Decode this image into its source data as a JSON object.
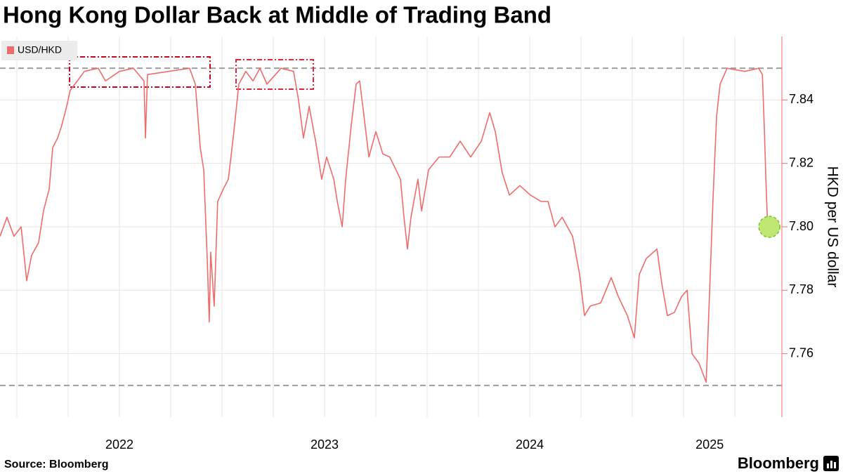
{
  "chart_data": {
    "type": "line",
    "title": "Hong Kong Dollar Back at Middle of Trading Band",
    "y_axis_label": "HKD per US dollar",
    "source": "Source: Bloomberg",
    "brand": "Bloomberg",
    "xlim": [
      2021.918,
      2025.729
    ],
    "xticks": [
      {
        "value": 2022.5,
        "label": "2022"
      },
      {
        "value": 2023.5,
        "label": "2023"
      },
      {
        "value": 2024.5,
        "label": "2024"
      },
      {
        "value": 2025.377,
        "label": "2025"
      }
    ],
    "xgrid": [
      2022,
      2022.25,
      2022.5,
      2022.75,
      2023,
      2023.25,
      2023.5,
      2023.75,
      2024,
      2024.25,
      2024.5,
      2024.75,
      2025,
      2025.25,
      2025.5
    ],
    "ylim": [
      7.74,
      7.86
    ],
    "yticks": [
      {
        "value": 7.76,
        "label": "7.76"
      },
      {
        "value": 7.78,
        "label": "7.78"
      },
      {
        "value": 7.8,
        "label": "7.80"
      },
      {
        "value": 7.82,
        "label": "7.82"
      },
      {
        "value": 7.84,
        "label": "7.84"
      }
    ],
    "grid": true,
    "reference_lines": [
      7.75,
      7.85
    ],
    "highlight": {
      "x": 2025.668,
      "y": 7.8,
      "color": "#b5e35a"
    },
    "legend": "top-left",
    "series": [
      {
        "name": "USD/HKD",
        "color": "#f06b6b",
        "x": [
          2021.918,
          2021.952,
          2021.986,
          2022.021,
          2022.048,
          2022.072,
          2022.106,
          2022.13,
          2022.158,
          2022.175,
          2022.199,
          2022.219,
          2022.243,
          2022.26,
          2022.295,
          2022.329,
          2022.397,
          2022.432,
          2022.5,
          2022.568,
          2022.62,
          2022.627,
          2022.637,
          2022.74,
          2022.842,
          2022.87,
          2022.894,
          2022.911,
          2022.928,
          2022.938,
          2022.945,
          2022.962,
          2022.979,
          2023.007,
          2023.031,
          2023.058,
          2023.082,
          2023.116,
          2023.151,
          2023.185,
          2023.219,
          2023.288,
          2023.349,
          2023.373,
          2023.397,
          2023.425,
          2023.459,
          2023.486,
          2023.51,
          2023.545,
          2023.562,
          2023.586,
          2023.603,
          2023.63,
          2023.654,
          2023.671,
          2023.692,
          2023.716,
          2023.75,
          2023.784,
          2023.818,
          2023.87,
          2023.887,
          2023.904,
          2023.921,
          2023.955,
          2023.973,
          2024.007,
          2024.058,
          2024.11,
          2024.161,
          2024.212,
          2024.264,
          2024.305,
          2024.332,
          2024.366,
          2024.401,
          2024.452,
          2024.503,
          2024.555,
          2024.589,
          2024.623,
          2024.658,
          2024.709,
          2024.743,
          2024.767,
          2024.795,
          2024.846,
          2024.897,
          2024.932,
          2024.976,
          2025.01,
          2025.034,
          2025.068,
          2025.12,
          2025.144,
          2025.171,
          2025.205,
          2025.24,
          2025.267,
          2025.291,
          2025.325,
          2025.36,
          2025.377,
          2025.394,
          2025.411,
          2025.428,
          2025.462,
          2025.548,
          2025.616,
          2025.634,
          2025.644,
          2025.651,
          2025.658
        ],
        "values": [
          7.797,
          7.803,
          7.797,
          7.8,
          7.783,
          7.791,
          7.795,
          7.805,
          7.812,
          7.825,
          7.828,
          7.832,
          7.838,
          7.843,
          7.846,
          7.849,
          7.85,
          7.846,
          7.849,
          7.85,
          7.846,
          7.828,
          7.848,
          7.849,
          7.85,
          7.845,
          7.825,
          7.818,
          7.79,
          7.77,
          7.792,
          7.775,
          7.808,
          7.812,
          7.815,
          7.83,
          7.845,
          7.849,
          7.846,
          7.85,
          7.845,
          7.85,
          7.849,
          7.84,
          7.828,
          7.838,
          7.826,
          7.815,
          7.822,
          7.815,
          7.808,
          7.8,
          7.815,
          7.832,
          7.845,
          7.846,
          7.835,
          7.822,
          7.83,
          7.823,
          7.822,
          7.815,
          7.803,
          7.793,
          7.803,
          7.815,
          7.805,
          7.818,
          7.822,
          7.822,
          7.827,
          7.822,
          7.827,
          7.836,
          7.83,
          7.817,
          7.81,
          7.813,
          7.81,
          7.808,
          7.808,
          7.8,
          7.803,
          7.797,
          7.785,
          7.772,
          7.775,
          7.776,
          7.784,
          7.778,
          7.772,
          7.765,
          7.785,
          7.79,
          7.793,
          7.782,
          7.772,
          7.773,
          7.778,
          7.78,
          7.76,
          7.757,
          7.751,
          7.78,
          7.81,
          7.835,
          7.845,
          7.85,
          7.849,
          7.85,
          7.848,
          7.83,
          7.815,
          7.803
        ]
      }
    ]
  }
}
